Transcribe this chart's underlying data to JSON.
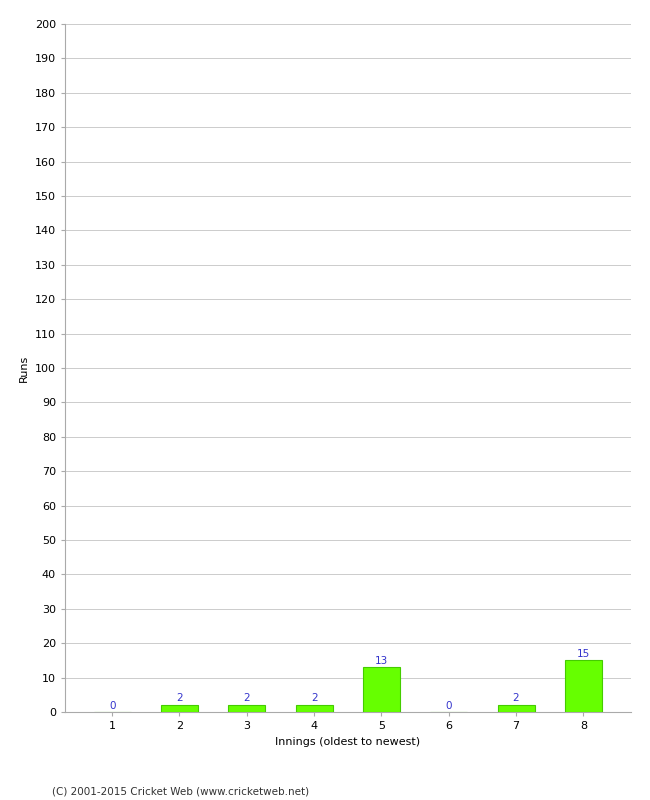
{
  "innings": [
    1,
    2,
    3,
    4,
    5,
    6,
    7,
    8
  ],
  "runs": [
    0,
    2,
    2,
    2,
    13,
    0,
    2,
    15
  ],
  "bar_color": "#66ff00",
  "bar_edge_color": "#44cc00",
  "label_color": "#3333cc",
  "xlabel": "Innings (oldest to newest)",
  "ylabel": "Runs",
  "ylim": [
    0,
    200
  ],
  "yticks": [
    0,
    10,
    20,
    30,
    40,
    50,
    60,
    70,
    80,
    90,
    100,
    110,
    120,
    130,
    140,
    150,
    160,
    170,
    180,
    190,
    200
  ],
  "footer": "(C) 2001-2015 Cricket Web (www.cricketweb.net)",
  "grid_color": "#cccccc",
  "background_color": "#ffffff",
  "label_fontsize": 7.5,
  "axis_tick_fontsize": 8,
  "axis_label_fontsize": 8,
  "footer_fontsize": 7.5
}
